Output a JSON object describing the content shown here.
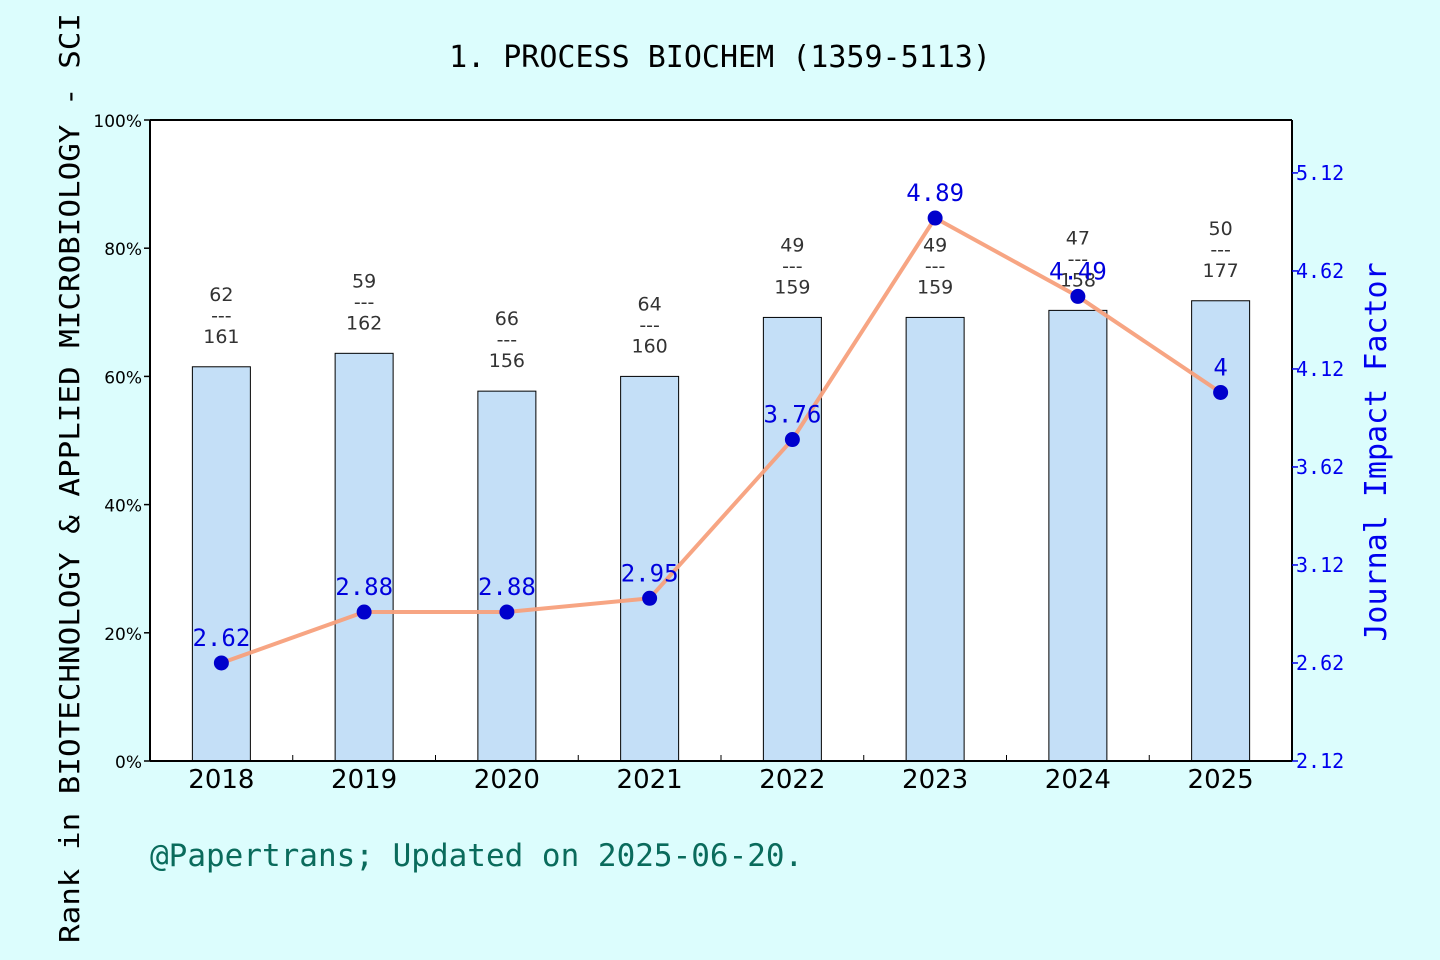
{
  "chart_data": {
    "type": "bar+line",
    "title": "1. PROCESS BIOCHEM (1359-5113)",
    "ylabel_left": "Rank in BIOTECHNOLOGY & APPLIED MICROBIOLOGY - SCI",
    "ylabel_right": "Journal Impact Factor",
    "footer": "@Papertrans; Updated on 2025-06-20.",
    "categories": [
      "2018",
      "2019",
      "2020",
      "2021",
      "2022",
      "2023",
      "2024",
      "2025"
    ],
    "rank_percent": [
      61.5,
      63.6,
      57.7,
      60.0,
      69.2,
      69.2,
      70.3,
      71.8
    ],
    "rank_labels": [
      {
        "rank": "62",
        "sep": "---",
        "total": "161"
      },
      {
        "rank": "59",
        "sep": "---",
        "total": "162"
      },
      {
        "rank": "66",
        "sep": "---",
        "total": "156"
      },
      {
        "rank": "64",
        "sep": "---",
        "total": "160"
      },
      {
        "rank": "49",
        "sep": "---",
        "total": "159"
      },
      {
        "rank": "49",
        "sep": "---",
        "total": "159"
      },
      {
        "rank": "47",
        "sep": "---",
        "total": "158"
      },
      {
        "rank": "50",
        "sep": "---",
        "total": "177"
      }
    ],
    "impact_factor": [
      2.62,
      2.88,
      2.88,
      2.95,
      3.76,
      4.89,
      4.49,
      4.0
    ],
    "impact_factor_labels": [
      "2.62",
      "2.88",
      "2.88",
      "2.95",
      "3.76",
      "4.89",
      "4.49",
      "4"
    ],
    "left_axis": {
      "ylim": [
        0,
        100
      ],
      "ticks": [
        "0%",
        "20%",
        "40%",
        "60%",
        "80%",
        "100%"
      ]
    },
    "right_axis": {
      "ylim": [
        2.12,
        5.39
      ],
      "ticks": [
        "2.12",
        "2.62",
        "3.12",
        "3.62",
        "4.12",
        "4.62",
        "5.12"
      ]
    },
    "grid": false,
    "colors": {
      "background": "#dcfdfd",
      "plot_background": "#ffffff",
      "bar_fill": "#c4dff7",
      "bar_stroke": "#000000",
      "line": "#f7a07c",
      "marker": "#0000cc",
      "if_label": "#0000dd",
      "right_axis": "#0000ee",
      "footer": "#0a6b5c"
    }
  }
}
